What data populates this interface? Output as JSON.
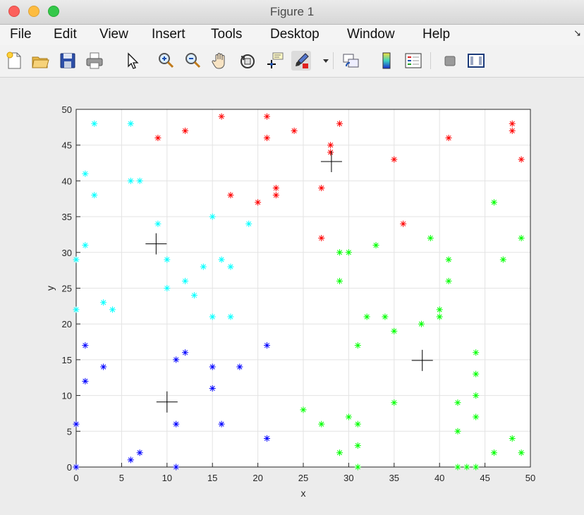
{
  "window": {
    "title": "Figure 1"
  },
  "menu": [
    "File",
    "Edit",
    "View",
    "Insert",
    "Tools",
    "Desktop",
    "Window",
    "Help"
  ],
  "toolbar": {
    "icons": [
      "new-figure-icon",
      "open-file-icon",
      "save-icon",
      "print-icon",
      "edit-plot-arrow-icon",
      "zoom-in-icon",
      "zoom-out-icon",
      "pan-hand-icon",
      "rotate-3d-icon",
      "data-cursor-icon",
      "brush-icon",
      "brush-dropdown-icon",
      "link-plot-icon",
      "insert-colorbar-icon",
      "insert-legend-icon",
      "hide-plot-tools-icon",
      "show-plot-tools-icon"
    ]
  },
  "chart_data": {
    "type": "scatter",
    "title": "",
    "xlabel": "x",
    "ylabel": "y",
    "xlim": [
      0,
      50
    ],
    "ylim": [
      0,
      50
    ],
    "xticks": [
      0,
      5,
      10,
      15,
      20,
      25,
      30,
      35,
      40,
      45,
      50
    ],
    "yticks": [
      0,
      5,
      10,
      15,
      20,
      25,
      30,
      35,
      40,
      45,
      50
    ],
    "grid": true,
    "legend": "none",
    "series": [
      {
        "color": "#ff0000",
        "marker": "*",
        "points": [
          [
            9,
            46
          ],
          [
            12,
            47
          ],
          [
            16,
            49
          ],
          [
            17,
            38
          ],
          [
            20,
            37
          ],
          [
            21,
            49
          ],
          [
            21,
            46
          ],
          [
            22,
            39
          ],
          [
            22,
            38
          ],
          [
            24,
            47
          ],
          [
            27,
            39
          ],
          [
            27,
            32
          ],
          [
            28,
            45
          ],
          [
            28,
            44
          ],
          [
            29,
            48
          ],
          [
            35,
            43
          ],
          [
            36,
            34
          ],
          [
            41,
            46
          ],
          [
            48,
            48
          ],
          [
            48,
            47
          ],
          [
            49,
            43
          ]
        ]
      },
      {
        "color": "#00ffff",
        "marker": "*",
        "points": [
          [
            0,
            29
          ],
          [
            0,
            22
          ],
          [
            1,
            41
          ],
          [
            1,
            31
          ],
          [
            2,
            48
          ],
          [
            2,
            38
          ],
          [
            3,
            23
          ],
          [
            4,
            22
          ],
          [
            6,
            48
          ],
          [
            6,
            40
          ],
          [
            7,
            40
          ],
          [
            9,
            34
          ],
          [
            10,
            29
          ],
          [
            10,
            25
          ],
          [
            12,
            26
          ],
          [
            13,
            24
          ],
          [
            14,
            28
          ],
          [
            15,
            35
          ],
          [
            15,
            21
          ],
          [
            16,
            29
          ],
          [
            17,
            28
          ],
          [
            17,
            21
          ],
          [
            19,
            34
          ]
        ]
      },
      {
        "color": "#0000ff",
        "marker": "*",
        "points": [
          [
            0,
            6
          ],
          [
            0,
            0
          ],
          [
            1,
            17
          ],
          [
            1,
            12
          ],
          [
            3,
            14
          ],
          [
            6,
            1
          ],
          [
            7,
            2
          ],
          [
            11,
            15
          ],
          [
            11,
            6
          ],
          [
            11,
            0
          ],
          [
            12,
            16
          ],
          [
            15,
            14
          ],
          [
            15,
            11
          ],
          [
            16,
            6
          ],
          [
            18,
            14
          ],
          [
            21,
            17
          ],
          [
            21,
            4
          ]
        ]
      },
      {
        "color": "#00ff00",
        "marker": "*",
        "points": [
          [
            25,
            8
          ],
          [
            27,
            6
          ],
          [
            29,
            30
          ],
          [
            29,
            26
          ],
          [
            29,
            2
          ],
          [
            30,
            30
          ],
          [
            30,
            7
          ],
          [
            31,
            17
          ],
          [
            31,
            6
          ],
          [
            31,
            3
          ],
          [
            31,
            0
          ],
          [
            32,
            21
          ],
          [
            33,
            31
          ],
          [
            34,
            21
          ],
          [
            35,
            19
          ],
          [
            35,
            9
          ],
          [
            38,
            20
          ],
          [
            39,
            32
          ],
          [
            40,
            22
          ],
          [
            40,
            21
          ],
          [
            41,
            29
          ],
          [
            41,
            26
          ],
          [
            42,
            9
          ],
          [
            42,
            5
          ],
          [
            42,
            0
          ],
          [
            43,
            0
          ],
          [
            44,
            16
          ],
          [
            44,
            13
          ],
          [
            44,
            10
          ],
          [
            44,
            7
          ],
          [
            44,
            0
          ],
          [
            46,
            37
          ],
          [
            46,
            2
          ],
          [
            47,
            29
          ],
          [
            48,
            4
          ],
          [
            49,
            32
          ],
          [
            49,
            2
          ]
        ]
      }
    ],
    "centroids": {
      "color": "#000000",
      "marker": "+",
      "points": [
        [
          8.8,
          31.2
        ],
        [
          10.0,
          9.1
        ],
        [
          28.1,
          42.7
        ],
        [
          38.1,
          14.9
        ]
      ]
    }
  }
}
